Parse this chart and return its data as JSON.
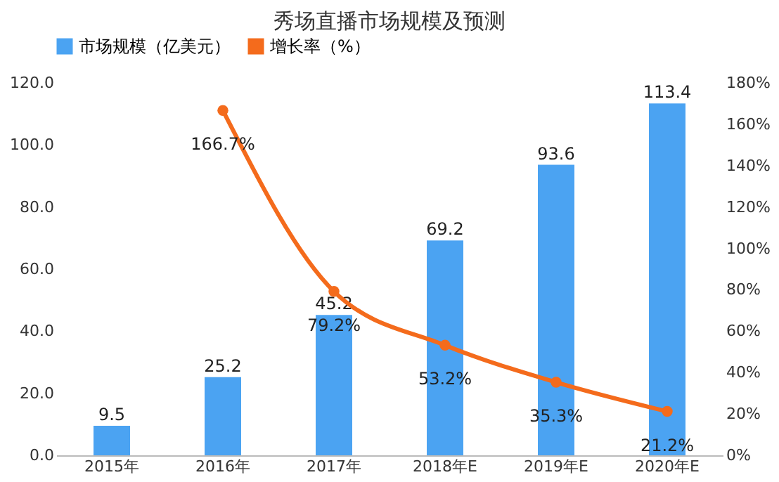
{
  "chart_data": {
    "type": "bar",
    "title": "秀场直播市场规模及预测",
    "categories": [
      "2015年",
      "2016年",
      "2017年",
      "2018年E",
      "2019年E",
      "2020年E"
    ],
    "series": [
      {
        "name": "市场规模（亿美元）",
        "color": "#4ba3f2",
        "values": [
          9.5,
          25.2,
          45.2,
          69.2,
          93.6,
          113.4
        ]
      },
      {
        "name": "增长率（%）",
        "type": "line",
        "axis": "y2",
        "color": "#f46b1c",
        "values": [
          null,
          166.7,
          79.2,
          53.2,
          35.3,
          21.2
        ],
        "value_labels": [
          null,
          "166.7%",
          "79.2%",
          "53.2%",
          "35.3%",
          "21.2%"
        ]
      }
    ],
    "ylim": [
      0,
      120
    ],
    "yticks": [
      {
        "value": 0,
        "label": "0.0"
      },
      {
        "value": 20,
        "label": "20.0"
      },
      {
        "value": 40,
        "label": "40.0"
      },
      {
        "value": 60,
        "label": "60.0"
      },
      {
        "value": 80,
        "label": "80.0"
      },
      {
        "value": 100,
        "label": "100.0"
      },
      {
        "value": 120,
        "label": "120.0"
      }
    ],
    "y2lim": [
      0,
      180
    ],
    "y2ticks": [
      {
        "value": 0,
        "label": "0%"
      },
      {
        "value": 20,
        "label": "20%"
      },
      {
        "value": 40,
        "label": "40%"
      },
      {
        "value": 60,
        "label": "60%"
      },
      {
        "value": 80,
        "label": "80%"
      },
      {
        "value": 100,
        "label": "100%"
      },
      {
        "value": 120,
        "label": "120%"
      },
      {
        "value": 140,
        "label": "140%"
      },
      {
        "value": 160,
        "label": "160%"
      },
      {
        "value": 180,
        "label": "180%"
      }
    ],
    "data_labels": true,
    "legend": "top",
    "grid": false,
    "marker": "circle",
    "line_style": "solid"
  }
}
